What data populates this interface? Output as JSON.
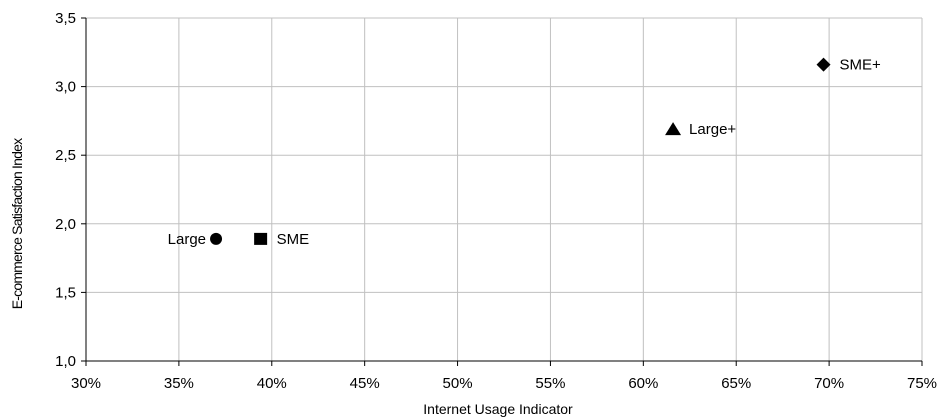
{
  "chart_data": {
    "type": "scatter",
    "title": "",
    "xlabel": "Internet Usage Indicator",
    "ylabel": "E-commerce Satisfaction Index",
    "xlim": [
      0.3,
      0.75
    ],
    "ylim": [
      1.0,
      3.5
    ],
    "x_ticks": [
      "30%",
      "35%",
      "40%",
      "45%",
      "50%",
      "55%",
      "60%",
      "65%",
      "70%",
      "75%"
    ],
    "y_ticks": [
      "1,0",
      "1,5",
      "2,0",
      "2,5",
      "3,0",
      "3,5"
    ],
    "grid": true,
    "legend": "none",
    "points": [
      {
        "label": "Large",
        "x": 0.37,
        "y": 1.89,
        "marker": "circle",
        "label_side": "left"
      },
      {
        "label": "SME",
        "x": 0.394,
        "y": 1.89,
        "marker": "square",
        "label_side": "right"
      },
      {
        "label": "Large+",
        "x": 0.616,
        "y": 2.69,
        "marker": "triangle",
        "label_side": "right"
      },
      {
        "label": "SME+",
        "x": 0.697,
        "y": 3.16,
        "marker": "diamond",
        "label_side": "right"
      }
    ],
    "colors": {
      "marker": "#000000",
      "grid": "#c0c0c0",
      "axis": "#000000"
    }
  }
}
